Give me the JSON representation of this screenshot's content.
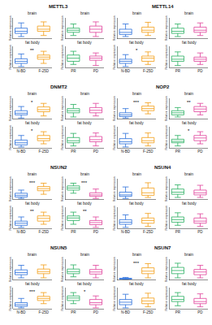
{
  "chart_data": [
    {
      "type": "box",
      "title": "METTL3",
      "y_label": "Relative expression",
      "tick_labels": "x",
      "columns": [
        {
          "categories": [
            "N-BD",
            "F-25D"
          ],
          "colors": [
            "#2a6fdb",
            "#f39c12"
          ]
        },
        {
          "categories": [
            "PR",
            "PD"
          ],
          "colors": [
            "#27ae60",
            "#e0409a"
          ]
        }
      ],
      "rows": [
        {
          "subtitle": "brain",
          "ylim": [
            0,
            1
          ],
          "cells": [
            {
              "boxes": [
                [
                  0.1,
                  0.25,
                  0.35,
                  0.5,
                  0.75
                ],
                [
                  0.15,
                  0.35,
                  0.45,
                  0.6,
                  0.8
                ]
              ],
              "annotation": null
            },
            {
              "boxes": [
                [
                  0.15,
                  0.3,
                  0.4,
                  0.5,
                  0.7
                ],
                [
                  0.1,
                  0.3,
                  0.45,
                  0.6,
                  0.8
                ]
              ],
              "annotation": null
            }
          ]
        },
        {
          "subtitle": "fat body",
          "ylim": [
            0,
            1
          ],
          "cells": [
            {
              "boxes": [
                [
                  0.05,
                  0.2,
                  0.3,
                  0.42,
                  0.65
                ],
                [
                  0.2,
                  0.4,
                  0.5,
                  0.6,
                  0.78
                ]
              ],
              "annotation": "**"
            },
            {
              "boxes": [
                [
                  0.15,
                  0.3,
                  0.45,
                  0.6,
                  0.78
                ],
                [
                  0.1,
                  0.35,
                  0.45,
                  0.55,
                  0.7
                ]
              ],
              "annotation": null
            }
          ]
        }
      ]
    },
    {
      "type": "box",
      "title": "METTL14",
      "y_label": "Relative expression",
      "tick_labels": "x",
      "columns": [
        {
          "categories": [
            "N-BD",
            "F-25D"
          ],
          "colors": [
            "#2a6fdb",
            "#f39c12"
          ]
        },
        {
          "categories": [
            "PR",
            "PD"
          ],
          "colors": [
            "#27ae60",
            "#e0409a"
          ]
        }
      ],
      "rows": [
        {
          "subtitle": "brain",
          "ylim": [
            0,
            1
          ],
          "cells": [
            {
              "boxes": [
                [
                  0.1,
                  0.2,
                  0.3,
                  0.45,
                  0.7
                ],
                [
                  0.15,
                  0.3,
                  0.4,
                  0.55,
                  0.78
                ]
              ],
              "annotation": null
            },
            {
              "boxes": [
                [
                  0.1,
                  0.25,
                  0.35,
                  0.5,
                  0.7
                ],
                [
                  0.15,
                  0.3,
                  0.4,
                  0.55,
                  0.75
                ]
              ],
              "annotation": null
            }
          ]
        },
        {
          "subtitle": "fat body",
          "ylim": [
            0,
            1
          ],
          "cells": [
            {
              "boxes": [
                [
                  0.05,
                  0.2,
                  0.3,
                  0.4,
                  0.62
                ],
                [
                  0.15,
                  0.3,
                  0.45,
                  0.55,
                  0.75
                ]
              ],
              "annotation": "*"
            },
            {
              "boxes": [
                [
                  0.1,
                  0.3,
                  0.4,
                  0.55,
                  0.75
                ],
                [
                  0.15,
                  0.3,
                  0.4,
                  0.5,
                  0.7
                ]
              ],
              "annotation": null
            }
          ]
        }
      ]
    },
    {
      "type": "box",
      "title": "DNMT2",
      "y_label": "Relative expression",
      "tick_labels": "x",
      "columns": [
        {
          "categories": [
            "N-BD",
            "F-25D"
          ],
          "colors": [
            "#2a6fdb",
            "#f39c12"
          ]
        },
        {
          "categories": [
            "PR",
            "PD"
          ],
          "colors": [
            "#27ae60",
            "#e0409a"
          ]
        }
      ],
      "rows": [
        {
          "subtitle": "brain",
          "ylim": [
            0,
            1
          ],
          "cells": [
            {
              "boxes": [
                [
                  0.05,
                  0.2,
                  0.28,
                  0.4,
                  0.6
                ],
                [
                  0.15,
                  0.35,
                  0.45,
                  0.58,
                  0.75
                ]
              ],
              "annotation": "*"
            },
            {
              "boxes": [
                [
                  0.1,
                  0.3,
                  0.4,
                  0.5,
                  0.7
                ],
                [
                  0.15,
                  0.3,
                  0.42,
                  0.55,
                  0.75
                ]
              ],
              "annotation": null
            }
          ]
        },
        {
          "subtitle": "fat body",
          "ylim": [
            0,
            1
          ],
          "cells": [
            {
              "boxes": [
                [
                  0.05,
                  0.15,
                  0.25,
                  0.38,
                  0.6
                ],
                [
                  0.2,
                  0.35,
                  0.45,
                  0.6,
                  0.78
                ]
              ],
              "annotation": "*"
            },
            {
              "boxes": [
                [
                  0.1,
                  0.25,
                  0.35,
                  0.5,
                  0.7
                ],
                [
                  0.1,
                  0.3,
                  0.4,
                  0.55,
                  0.72
                ]
              ],
              "annotation": null
            }
          ]
        }
      ]
    },
    {
      "type": "box",
      "title": "NOP2",
      "y_label": "Relative expression",
      "tick_labels": "x",
      "columns": [
        {
          "categories": [
            "N-BD",
            "F-25D"
          ],
          "colors": [
            "#2a6fdb",
            "#f39c12"
          ]
        },
        {
          "categories": [
            "PR",
            "PD"
          ],
          "colors": [
            "#27ae60",
            "#e0409a"
          ]
        }
      ],
      "rows": [
        {
          "subtitle": "brain",
          "ylim": [
            0,
            1
          ],
          "cells": [
            {
              "boxes": [
                [
                  0.05,
                  0.12,
                  0.2,
                  0.3,
                  0.5
                ],
                [
                  0.25,
                  0.4,
                  0.5,
                  0.62,
                  0.78
                ]
              ],
              "annotation": "***"
            },
            {
              "boxes": [
                [
                  0.1,
                  0.2,
                  0.3,
                  0.4,
                  0.55
                ],
                [
                  0.2,
                  0.35,
                  0.48,
                  0.6,
                  0.75
                ]
              ],
              "annotation": "**"
            }
          ]
        },
        {
          "subtitle": "fat body",
          "ylim": [
            0,
            1
          ],
          "cells": [
            {
              "boxes": [
                [
                  0.05,
                  0.2,
                  0.3,
                  0.45,
                  0.7
                ],
                [
                  0.1,
                  0.25,
                  0.35,
                  0.5,
                  0.72
                ]
              ],
              "annotation": null
            },
            {
              "boxes": [
                [
                  0.1,
                  0.25,
                  0.32,
                  0.42,
                  0.6
                ],
                [
                  0.2,
                  0.35,
                  0.48,
                  0.6,
                  0.78
                ]
              ],
              "annotation": "*"
            }
          ]
        }
      ]
    },
    {
      "type": "box",
      "title": "NSUN2",
      "y_label": "Relative expression",
      "tick_labels": "x",
      "columns": [
        {
          "categories": [
            "N-BD",
            "F-25D"
          ],
          "colors": [
            "#2a6fdb",
            "#f39c12"
          ]
        },
        {
          "categories": [
            "PR",
            "PD"
          ],
          "colors": [
            "#27ae60",
            "#e0409a"
          ]
        }
      ],
      "rows": [
        {
          "subtitle": "brain",
          "ylim": [
            0,
            1
          ],
          "cells": [
            {
              "boxes": [
                [
                  0.05,
                  0.12,
                  0.2,
                  0.3,
                  0.45
                ],
                [
                  0.25,
                  0.42,
                  0.52,
                  0.62,
                  0.78
                ]
              ],
              "annotation": "***"
            },
            {
              "boxes": [
                [
                  0.3,
                  0.45,
                  0.55,
                  0.65,
                  0.78
                ],
                [
                  0.05,
                  0.15,
                  0.22,
                  0.32,
                  0.5
                ]
              ],
              "annotation": "***"
            }
          ]
        },
        {
          "subtitle": "fat body",
          "ylim": [
            0,
            1
          ],
          "cells": [
            {
              "boxes": [
                [
                  0.05,
                  0.15,
                  0.25,
                  0.35,
                  0.55
                ],
                [
                  0.2,
                  0.35,
                  0.48,
                  0.6,
                  0.78
                ]
              ],
              "annotation": "**"
            },
            {
              "boxes": [
                [
                  0.2,
                  0.38,
                  0.5,
                  0.6,
                  0.78
                ],
                [
                  0.05,
                  0.18,
                  0.28,
                  0.38,
                  0.55
                ]
              ],
              "annotation": "**"
            }
          ]
        }
      ]
    },
    {
      "type": "box",
      "title": "NSUN4",
      "y_label": "Relative expression",
      "tick_labels": "x",
      "columns": [
        {
          "categories": [
            "N-BD",
            "F-25D"
          ],
          "colors": [
            "#2a6fdb",
            "#f39c12"
          ]
        },
        {
          "categories": [
            "PR",
            "PD"
          ],
          "colors": [
            "#27ae60",
            "#e0409a"
          ]
        }
      ],
      "rows": [
        {
          "subtitle": "brain",
          "ylim": [
            0,
            1
          ],
          "cells": [
            {
              "boxes": [
                [
                  0.05,
                  0.15,
                  0.22,
                  0.35,
                  0.6
                ],
                [
                  0.1,
                  0.2,
                  0.32,
                  0.55,
                  0.8
                ]
              ],
              "annotation": null
            },
            {
              "boxes": [
                [
                  0.1,
                  0.25,
                  0.35,
                  0.5,
                  0.7
                ],
                [
                  0.1,
                  0.22,
                  0.32,
                  0.45,
                  0.68
                ]
              ],
              "annotation": null
            }
          ]
        },
        {
          "subtitle": "fat body",
          "ylim": [
            0,
            1
          ],
          "cells": [
            {
              "boxes": [
                [
                  0.05,
                  0.2,
                  0.3,
                  0.42,
                  0.65
                ],
                [
                  0.1,
                  0.25,
                  0.38,
                  0.5,
                  0.72
                ]
              ],
              "annotation": null
            },
            {
              "boxes": [
                [
                  0.15,
                  0.3,
                  0.42,
                  0.55,
                  0.75
                ],
                [
                  0.1,
                  0.25,
                  0.35,
                  0.5,
                  0.7
                ]
              ],
              "annotation": null
            }
          ]
        }
      ]
    },
    {
      "type": "box",
      "title": "NSUN5",
      "y_label": "Relative expression",
      "tick_labels": "x",
      "columns": [
        {
          "categories": [
            "N-BD",
            "F-25D"
          ],
          "colors": [
            "#2a6fdb",
            "#f39c12"
          ]
        },
        {
          "categories": [
            "PR",
            "PD"
          ],
          "colors": [
            "#27ae60",
            "#e0409a"
          ]
        }
      ],
      "rows": [
        {
          "subtitle": "brain",
          "ylim": [
            0,
            1
          ],
          "cells": [
            {
              "boxes": [
                [
                  0.1,
                  0.25,
                  0.35,
                  0.48,
                  0.7
                ],
                [
                  0.1,
                  0.3,
                  0.4,
                  0.52,
                  0.72
                ]
              ],
              "annotation": null
            },
            {
              "boxes": [
                [
                  0.15,
                  0.3,
                  0.4,
                  0.52,
                  0.72
                ],
                [
                  0.1,
                  0.28,
                  0.38,
                  0.5,
                  0.7
                ]
              ],
              "annotation": null
            }
          ]
        },
        {
          "subtitle": "fat body",
          "ylim": [
            0,
            1
          ],
          "cells": [
            {
              "boxes": [
                [
                  0.05,
                  0.12,
                  0.2,
                  0.3,
                  0.5
                ],
                [
                  0.25,
                  0.4,
                  0.5,
                  0.6,
                  0.78
                ]
              ],
              "annotation": "***"
            },
            {
              "boxes": [
                [
                  0.25,
                  0.4,
                  0.52,
                  0.62,
                  0.78
                ],
                [
                  0.05,
                  0.2,
                  0.3,
                  0.45,
                  0.62
                ]
              ],
              "annotation": "*"
            }
          ]
        }
      ]
    },
    {
      "type": "box",
      "title": "NSUN7",
      "y_label": "Relative expression",
      "tick_labels": "x",
      "columns": [
        {
          "categories": [
            "N-BD",
            "F-25D"
          ],
          "colors": [
            "#2a6fdb",
            "#f39c12"
          ]
        },
        {
          "categories": [
            "PR",
            "PD"
          ],
          "colors": [
            "#27ae60",
            "#e0409a"
          ]
        }
      ],
      "rows": [
        {
          "subtitle": "brain",
          "ylim": [
            0,
            1
          ],
          "cells": [
            {
              "boxes": [
                [
                  0.02,
                  0.04,
                  0.06,
                  0.08,
                  0.12
                ],
                [
                  0.1,
                  0.3,
                  0.42,
                  0.58,
                  0.78
                ]
              ],
              "annotation": "***"
            },
            {
              "boxes": [
                [
                  0.1,
                  0.3,
                  0.45,
                  0.6,
                  0.8
                ],
                [
                  0.1,
                  0.25,
                  0.38,
                  0.5,
                  0.7
                ]
              ],
              "annotation": null
            }
          ]
        },
        {
          "subtitle": "fat body",
          "ylim": [
            0,
            1
          ],
          "cells": [
            {
              "boxes": [
                [
                  0.05,
                  0.2,
                  0.32,
                  0.45,
                  0.7
                ],
                [
                  0.1,
                  0.25,
                  0.38,
                  0.52,
                  0.75
                ]
              ],
              "annotation": null
            },
            {
              "boxes": [
                [
                  0.15,
                  0.35,
                  0.45,
                  0.6,
                  0.78
                ],
                [
                  0.1,
                  0.25,
                  0.35,
                  0.5,
                  0.72
                ]
              ],
              "annotation": null
            }
          ]
        }
      ]
    }
  ]
}
